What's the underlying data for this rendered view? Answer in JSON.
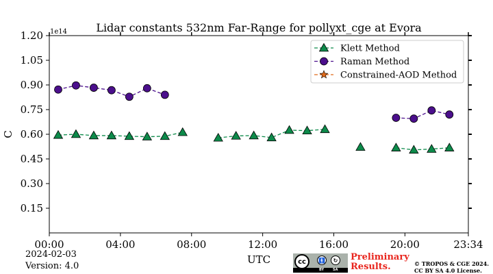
{
  "chart_data": {
    "type": "line",
    "title": "Lidar constants 532nm Far-Range for pollyxt_cge at Evora",
    "xlabel": "UTC",
    "ylabel": "C",
    "y_scale_label": "1e14",
    "x_tick_labels": [
      "00:00",
      "04:00",
      "08:00",
      "12:00",
      "16:00",
      "20:00",
      "23:34"
    ],
    "x_tick_hours": [
      0,
      4,
      8,
      12,
      16,
      20,
      23.567
    ],
    "xlim_hours": [
      0,
      23.567
    ],
    "y_ticks": [
      0.15,
      0.3,
      0.45,
      0.6,
      0.75,
      0.9,
      1.05,
      1.2
    ],
    "y_tick_labels": [
      "0.15",
      "0.30",
      "0.45",
      "0.60",
      "0.75",
      "0.90",
      "1.05",
      "1.20"
    ],
    "ylim": [
      0,
      1.2
    ],
    "legend_position": "top-right",
    "series": [
      {
        "name": "Klett Method",
        "marker": "triangle",
        "color": "#0d8a4a",
        "line_color": "#0d8a4a",
        "segments": [
          {
            "x": [
              0.5,
              1.5,
              2.5,
              3.5,
              4.5,
              5.5,
              6.5,
              7.5
            ],
            "y": [
              0.595,
              0.6,
              0.592,
              0.592,
              0.588,
              0.585,
              0.588,
              0.612
            ]
          },
          {
            "x": [
              9.5,
              10.5,
              11.5,
              12.5,
              13.5,
              14.5,
              15.5
            ],
            "y": [
              0.578,
              0.59,
              0.592,
              0.58,
              0.625,
              0.622,
              0.63
            ]
          },
          {
            "x": [
              17.5
            ],
            "y": [
              0.522
            ]
          },
          {
            "x": [
              19.5,
              20.5,
              21.5,
              22.5
            ],
            "y": [
              0.518,
              0.505,
              0.51,
              0.518
            ]
          }
        ]
      },
      {
        "name": "Raman Method",
        "marker": "circle",
        "color": "#4b0f8c",
        "line_color": "#4b0f8c",
        "segments": [
          {
            "x": [
              0.5,
              1.5,
              2.5,
              3.5,
              4.5,
              5.5,
              6.5
            ],
            "y": [
              0.872,
              0.897,
              0.883,
              0.868,
              0.828,
              0.88,
              0.84
            ]
          },
          {
            "x": [
              19.5,
              20.5,
              21.5,
              22.5
            ],
            "y": [
              0.7,
              0.695,
              0.745,
              0.72
            ]
          }
        ]
      },
      {
        "name": "Constrained-AOD Method",
        "marker": "star",
        "color": "#e06a1a",
        "line_color": "#e06a1a",
        "segments": []
      }
    ]
  },
  "footer": {
    "date": "2024-02-03",
    "version": "Version: 4.0",
    "preliminary_line1": "Preliminary",
    "preliminary_line2": "Results.",
    "copyright_line1": "© TROPOS & CGE 2024.",
    "copyright_line2": "CC BY SA 4.0 License.",
    "license_badge": {
      "cc": "cc",
      "by": "BY",
      "sa": "SA"
    }
  }
}
